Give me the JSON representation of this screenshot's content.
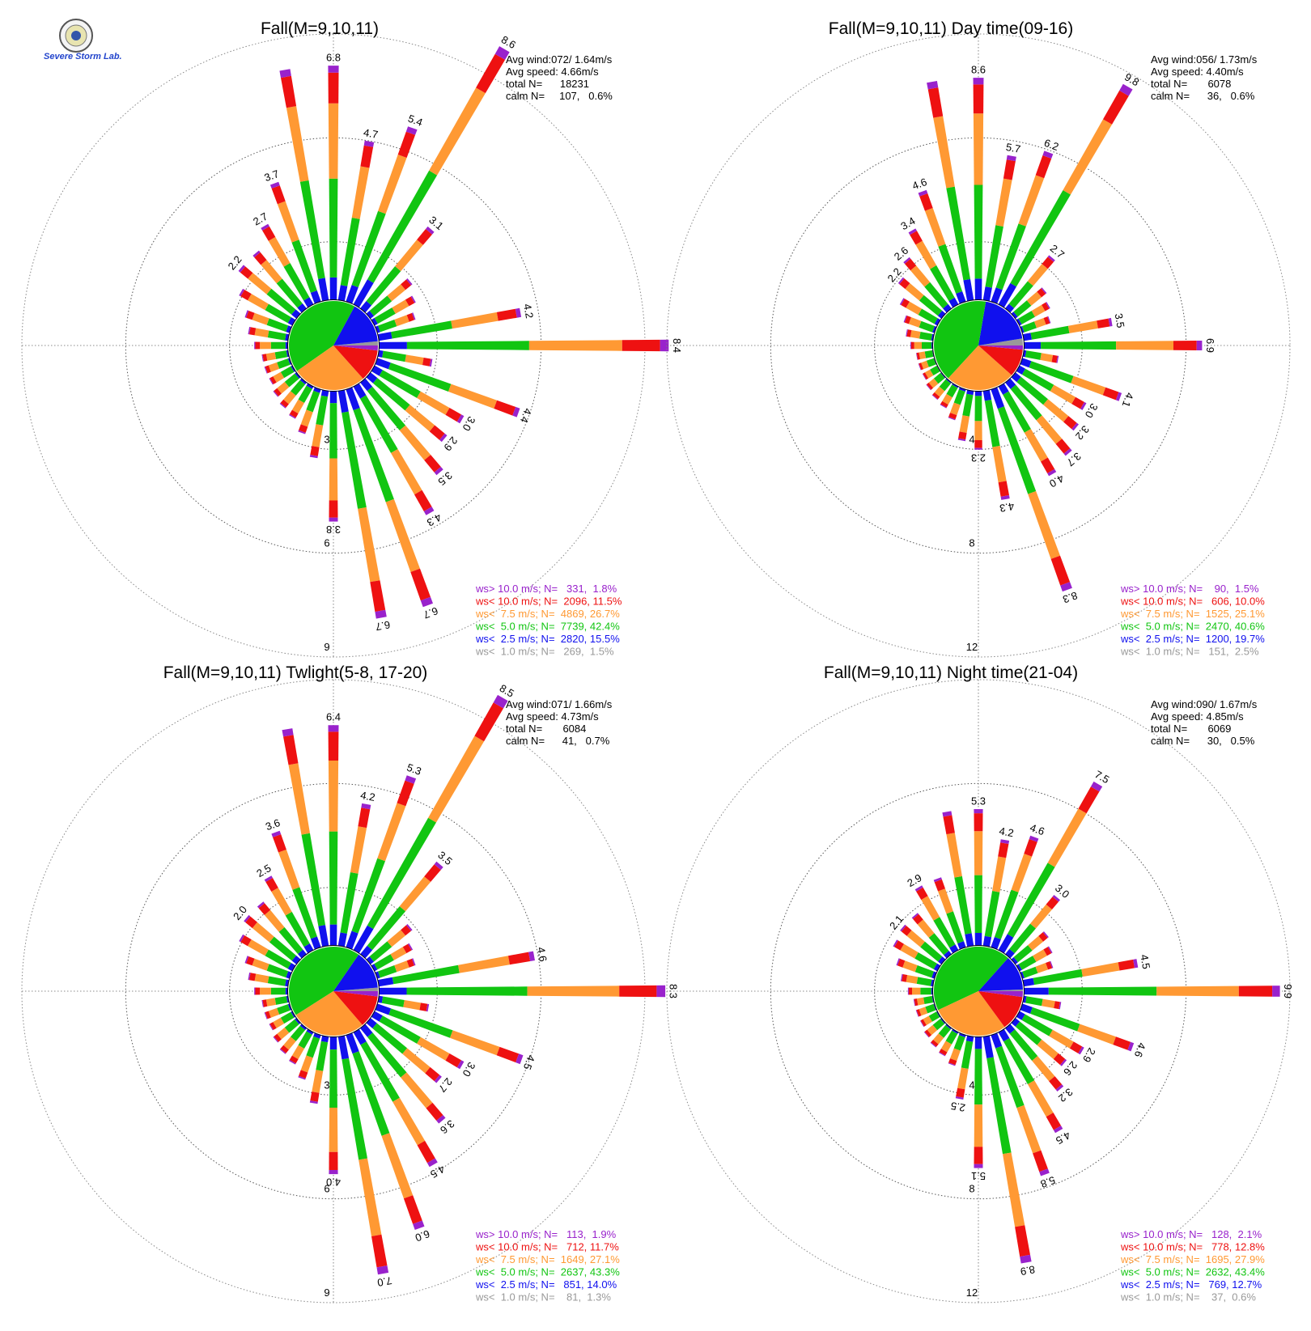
{
  "logo": {
    "text": "Severe Storm Lab."
  },
  "colors": {
    "calm": "#999999",
    "ws1": "#999999",
    "ws2": "#1010ee",
    "ws3": "#11c511",
    "ws4": "#ff9933",
    "ws5": "#ee1111",
    "ws6": "#9922cc"
  },
  "chart_data": [
    {
      "type": "wind-rose",
      "title": "Fall(M=9,10,11)",
      "stats": {
        "avg_wind": "Avg wind:072/ 1.64m/s",
        "avg_speed": "Avg speed: 4.66m/s",
        "total": "total N=      18231",
        "calm": "calm N=     107,   0.6%"
      },
      "rings": [
        3,
        6,
        9
      ],
      "max_ring": 9,
      "direction_step_deg": 10,
      "directions_deg": [
        0,
        10,
        20,
        30,
        40,
        50,
        60,
        70,
        80,
        90,
        100,
        110,
        120,
        130,
        140,
        150,
        160,
        170,
        180,
        190,
        200,
        210,
        220,
        230,
        240,
        250,
        260,
        270,
        280,
        290,
        300,
        310,
        320,
        330,
        340,
        350
      ],
      "bar_totals": [
        6.8,
        4.7,
        5.4,
        8.6,
        3.1,
        1.6,
        1.4,
        1.2,
        4.2,
        8.4,
        1.6,
        4.4,
        3.0,
        2.9,
        3.5,
        4.3,
        6.7,
        6.7,
        3.8,
        2.0,
        1.4,
        1.1,
        1.0,
        0.9,
        0.8,
        0.8,
        0.8,
        1.0,
        1.2,
        1.4,
        1.8,
        2.2,
        2.2,
        2.7,
        3.7,
        6.8
      ],
      "bar_labels": [
        "6.8",
        "4.7",
        "5.4",
        "8.6",
        "3.1",
        "",
        "",
        "",
        "4.2",
        "8.4",
        "",
        "4.4",
        "3.0",
        "2.9",
        "3.5",
        "4.3",
        "6.7",
        "6.7",
        "3.8",
        "",
        "",
        "",
        "",
        "",
        "",
        "",
        "",
        "",
        "",
        "",
        "",
        "2.2",
        "",
        "2.7",
        "3.7",
        ""
      ],
      "pie_percent": {
        "ws1": 1.5,
        "ws2": 15.5,
        "ws3": 42.4,
        "ws4": 26.7,
        "ws5": 11.5,
        "ws6": 1.8
      },
      "legend": [
        {
          "text": "ws> 10.0 m/s; N=   331,  1.8%",
          "color": "#9922cc"
        },
        {
          "text": "ws< 10.0 m/s; N=  2096, 11.5%",
          "color": "#ee1111"
        },
        {
          "text": "ws<  7.5 m/s; N=  4869, 26.7%",
          "color": "#ff9933"
        },
        {
          "text": "ws<  5.0 m/s; N=  7739, 42.4%",
          "color": "#11c511"
        },
        {
          "text": "ws<  2.5 m/s; N=  2820, 15.5%",
          "color": "#1010ee"
        },
        {
          "text": "ws<  1.0 m/s; N=   269,  1.5%",
          "color": "#999999"
        }
      ]
    },
    {
      "type": "wind-rose",
      "title": "Fall(M=9,10,11) Day time(09-16)",
      "stats": {
        "avg_wind": "Avg wind:056/ 1.73m/s",
        "avg_speed": "Avg speed: 4.40m/s",
        "total": "total N=       6078",
        "calm": "calm N=      36,   0.6%"
      },
      "rings": [
        4,
        8,
        12
      ],
      "max_ring": 12,
      "direction_step_deg": 10,
      "directions_deg": [
        0,
        10,
        20,
        30,
        40,
        50,
        60,
        70,
        80,
        90,
        100,
        110,
        120,
        130,
        140,
        150,
        160,
        170,
        180,
        190,
        200,
        210,
        220,
        230,
        240,
        250,
        260,
        270,
        280,
        290,
        300,
        310,
        320,
        330,
        340,
        350
      ],
      "bar_totals": [
        8.6,
        5.7,
        6.2,
        9.8,
        2.7,
        1.6,
        1.4,
        1.2,
        3.5,
        6.9,
        1.4,
        4.1,
        3.0,
        3.2,
        3.7,
        4.0,
        8.3,
        4.3,
        2.3,
        2.0,
        1.3,
        1.0,
        0.9,
        0.8,
        0.7,
        0.7,
        0.7,
        0.9,
        1.1,
        1.3,
        1.7,
        2.2,
        2.6,
        3.4,
        4.6,
        8.6
      ],
      "bar_labels": [
        "8.6",
        "5.7",
        "6.2",
        "9.8",
        "2.7",
        "",
        "",
        "",
        "3.5",
        "6.9",
        "",
        "4.1",
        "3.0",
        "3.2",
        "3.7",
        "4.0",
        "8.3",
        "4.3",
        "2.3",
        "",
        "",
        "",
        "",
        "",
        "",
        "",
        "",
        "",
        "",
        "",
        "",
        "2.2",
        "2.6",
        "3.4",
        "4.6",
        ""
      ],
      "pie_percent": {
        "ws1": 2.5,
        "ws2": 19.7,
        "ws3": 40.6,
        "ws4": 25.1,
        "ws5": 10.0,
        "ws6": 1.5
      },
      "legend": [
        {
          "text": "ws> 10.0 m/s; N=    90,  1.5%",
          "color": "#9922cc"
        },
        {
          "text": "ws< 10.0 m/s; N=   606, 10.0%",
          "color": "#ee1111"
        },
        {
          "text": "ws<  7.5 m/s; N=  1525, 25.1%",
          "color": "#ff9933"
        },
        {
          "text": "ws<  5.0 m/s; N=  2470, 40.6%",
          "color": "#11c511"
        },
        {
          "text": "ws<  2.5 m/s; N=  1200, 19.7%",
          "color": "#1010ee"
        },
        {
          "text": "ws<  1.0 m/s; N=   151,  2.5%",
          "color": "#999999"
        }
      ]
    },
    {
      "type": "wind-rose",
      "title": "Fall(M=9,10,11) Twlight(5-8, 17-20)",
      "stats": {
        "avg_wind": "Avg wind:071/ 1.66m/s",
        "avg_speed": "Avg speed: 4.73m/s",
        "total": "total N=       6084",
        "calm": "calm N=      41,   0.7%"
      },
      "rings": [
        3,
        6,
        9
      ],
      "max_ring": 9,
      "direction_step_deg": 10,
      "directions_deg": [
        0,
        10,
        20,
        30,
        40,
        50,
        60,
        70,
        80,
        90,
        100,
        110,
        120,
        130,
        140,
        150,
        160,
        170,
        180,
        190,
        200,
        210,
        220,
        230,
        240,
        250,
        260,
        270,
        280,
        290,
        300,
        310,
        320,
        330,
        340,
        350
      ],
      "bar_totals": [
        6.4,
        4.2,
        5.3,
        8.5,
        3.5,
        1.6,
        1.3,
        1.2,
        4.6,
        8.3,
        1.5,
        4.5,
        3.0,
        2.7,
        3.6,
        4.5,
        6.0,
        7.0,
        4.0,
        2.0,
        1.4,
        1.1,
        1.0,
        0.9,
        0.8,
        0.8,
        0.8,
        1.0,
        1.2,
        1.4,
        1.8,
        2.0,
        2.0,
        2.5,
        3.6,
        6.4
      ],
      "bar_labels": [
        "6.4",
        "4.2",
        "5.3",
        "8.5",
        "3.5",
        "",
        "",
        "",
        "4.6",
        "8.3",
        "",
        "4.5",
        "3.0",
        "2.7",
        "3.6",
        "4.5",
        "6.0",
        "7.0",
        "4.0",
        "",
        "",
        "",
        "",
        "",
        "",
        "",
        "",
        "",
        "",
        "",
        "",
        "2.0",
        "",
        "2.5",
        "3.6",
        ""
      ],
      "pie_percent": {
        "ws1": 1.3,
        "ws2": 14.0,
        "ws3": 43.3,
        "ws4": 27.1,
        "ws5": 11.7,
        "ws6": 1.9
      },
      "legend": [
        {
          "text": "ws> 10.0 m/s; N=   113,  1.9%",
          "color": "#9922cc"
        },
        {
          "text": "ws< 10.0 m/s; N=   712, 11.7%",
          "color": "#ee1111"
        },
        {
          "text": "ws<  7.5 m/s; N=  1649, 27.1%",
          "color": "#ff9933"
        },
        {
          "text": "ws<  5.0 m/s; N=  2637, 43.3%",
          "color": "#11c511"
        },
        {
          "text": "ws<  2.5 m/s; N=   851, 14.0%",
          "color": "#1010ee"
        },
        {
          "text": "ws<  1.0 m/s; N=    81,  1.3%",
          "color": "#999999"
        }
      ]
    },
    {
      "type": "wind-rose",
      "title": "Fall(M=9,10,11) Night time(21-04)",
      "stats": {
        "avg_wind": "Avg wind:090/ 1.67m/s",
        "avg_speed": "Avg speed: 4.85m/s",
        "total": "total N=       6069",
        "calm": "calm N=      30,   0.5%"
      },
      "rings": [
        4,
        8,
        12
      ],
      "max_ring": 12,
      "direction_step_deg": 10,
      "directions_deg": [
        0,
        10,
        20,
        30,
        40,
        50,
        60,
        70,
        80,
        90,
        100,
        110,
        120,
        130,
        140,
        150,
        160,
        170,
        180,
        190,
        200,
        210,
        220,
        230,
        240,
        250,
        260,
        270,
        280,
        290,
        300,
        310,
        320,
        330,
        340,
        350
      ],
      "bar_totals": [
        5.3,
        4.2,
        4.6,
        7.5,
        3.0,
        1.7,
        1.5,
        1.3,
        4.5,
        9.9,
        1.5,
        4.6,
        2.9,
        2.6,
        3.2,
        4.5,
        5.8,
        8.9,
        5.1,
        2.5,
        1.3,
        1.1,
        1.0,
        0.9,
        0.8,
        0.8,
        0.8,
        1.0,
        1.3,
        1.6,
        2.0,
        2.1,
        2.1,
        2.9,
        2.9,
        5.3
      ],
      "bar_labels": [
        "5.3",
        "4.2",
        "4.6",
        "7.5",
        "3.0",
        "",
        "",
        "",
        "4.5",
        "9.9",
        "",
        "4.6",
        "2.9",
        "2.6",
        "3.2",
        "4.5",
        "5.8",
        "8.9",
        "5.1",
        "2.5",
        "",
        "",
        "",
        "",
        "",
        "",
        "",
        "",
        "",
        "",
        "",
        "2.1",
        "",
        "2.9",
        "",
        ""
      ],
      "pie_percent": {
        "ws1": 0.6,
        "ws2": 12.7,
        "ws3": 43.4,
        "ws4": 27.9,
        "ws5": 12.8,
        "ws6": 2.1
      },
      "legend": [
        {
          "text": "ws> 10.0 m/s; N=   128,  2.1%",
          "color": "#9922cc"
        },
        {
          "text": "ws< 10.0 m/s; N=   778, 12.8%",
          "color": "#ee1111"
        },
        {
          "text": "ws<  7.5 m/s; N=  1695, 27.9%",
          "color": "#ff9933"
        },
        {
          "text": "ws<  5.0 m/s; N=  2632, 43.4%",
          "color": "#11c511"
        },
        {
          "text": "ws<  2.5 m/s; N=   769, 12.7%",
          "color": "#1010ee"
        },
        {
          "text": "ws<  1.0 m/s; N=    37,  0.6%",
          "color": "#999999"
        }
      ]
    }
  ]
}
